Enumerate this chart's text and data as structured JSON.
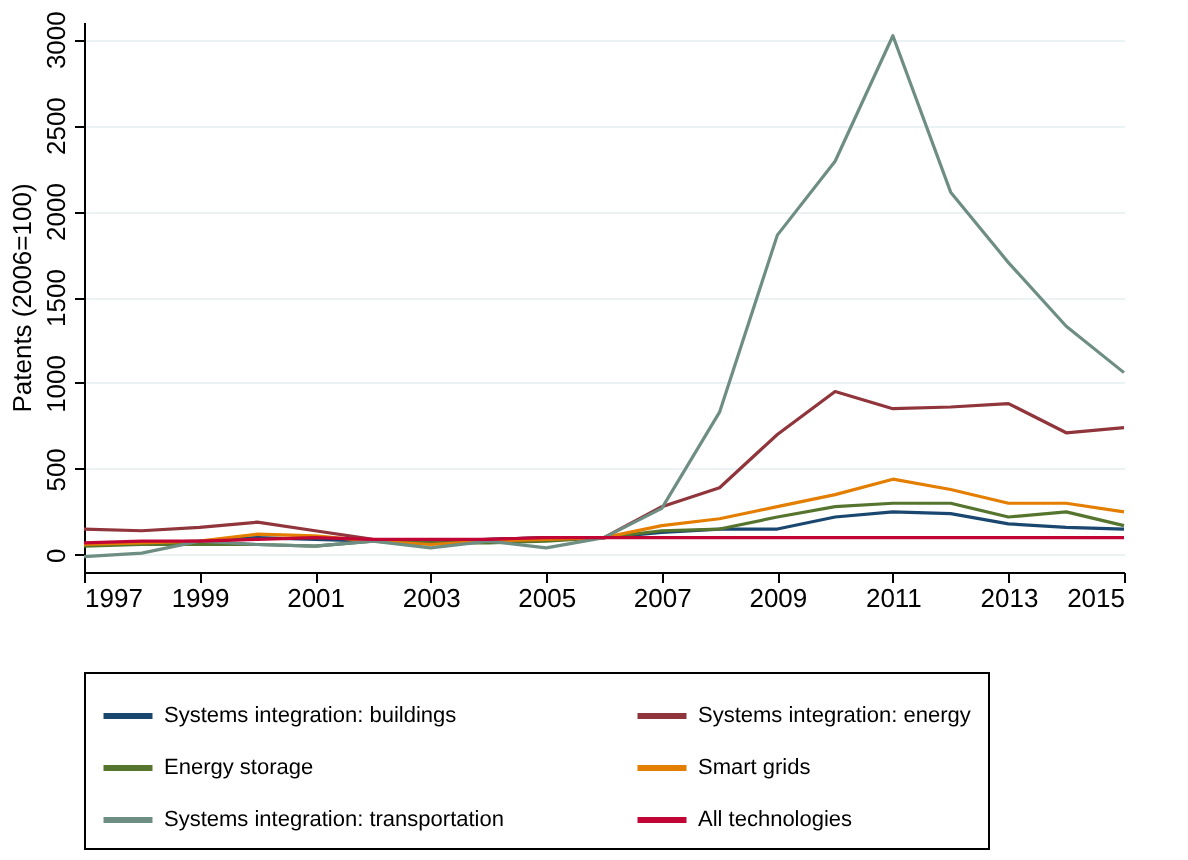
{
  "chart_data": {
    "type": "line",
    "ylabel": "Patents (2006=100)",
    "x": [
      1997,
      1998,
      1999,
      2000,
      2001,
      2002,
      2003,
      2004,
      2005,
      2006,
      2007,
      2008,
      2009,
      2010,
      2011,
      2012,
      2013,
      2014,
      2015
    ],
    "xlim": [
      1997,
      2015
    ],
    "xticks": [
      1997,
      1999,
      2001,
      2003,
      2005,
      2007,
      2009,
      2011,
      2013,
      2015
    ],
    "ylim": [
      -100,
      3100
    ],
    "yticks": [
      0,
      500,
      1000,
      1500,
      2000,
      2500,
      3000
    ],
    "grid": "y",
    "legend": "bottom",
    "line_style": "solid",
    "series": [
      {
        "name": "Systems integration: buildings",
        "color": "#1a476f",
        "values": [
          60,
          70,
          80,
          100,
          90,
          80,
          70,
          90,
          100,
          100,
          130,
          150,
          150,
          220,
          250,
          240,
          180,
          160,
          150
        ]
      },
      {
        "name": "Systems integration: energy",
        "color": "#90353b",
        "values": [
          150,
          140,
          160,
          190,
          140,
          90,
          80,
          90,
          100,
          100,
          280,
          390,
          700,
          950,
          850,
          860,
          880,
          710,
          740
        ]
      },
      {
        "name": "Energy storage",
        "color": "#55752f",
        "values": [
          50,
          60,
          60,
          60,
          50,
          80,
          70,
          70,
          80,
          100,
          140,
          150,
          220,
          280,
          300,
          300,
          220,
          250,
          170
        ]
      },
      {
        "name": "Smart grids",
        "color": "#e37e00",
        "values": [
          60,
          70,
          80,
          120,
          110,
          80,
          60,
          80,
          90,
          100,
          170,
          210,
          280,
          350,
          440,
          380,
          300,
          300,
          250
        ]
      },
      {
        "name": "Systems integration: transportation",
        "color": "#6e8e84",
        "values": [
          -10,
          10,
          80,
          60,
          50,
          80,
          40,
          80,
          40,
          100,
          270,
          830,
          1860,
          2290,
          3020,
          2110,
          1700,
          1330,
          1060
        ]
      },
      {
        "name": "All technologies",
        "color": "#c10534",
        "values": [
          70,
          80,
          80,
          90,
          100,
          90,
          90,
          90,
          100,
          100,
          100,
          100,
          100,
          100,
          100,
          100,
          100,
          100,
          100
        ]
      }
    ]
  }
}
